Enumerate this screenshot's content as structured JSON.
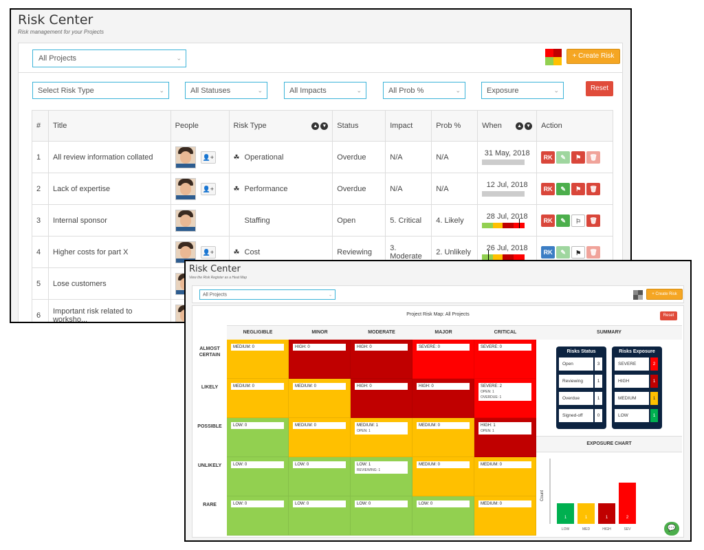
{
  "win1": {
    "title": "Risk Center",
    "subtitle": "Risk management for your Projects",
    "project_select": "All Projects",
    "create_label": "+ Create Risk",
    "filters": {
      "risk_type": "Select Risk Type",
      "status": "All Statuses",
      "impact": "All Impacts",
      "prob": "All Prob %",
      "exposure": "Exposure"
    },
    "reset_label": "Reset",
    "columns": [
      "#",
      "Title",
      "People",
      "Risk Type",
      "Status",
      "Impact",
      "Prob %",
      "When",
      "Action"
    ],
    "rows": [
      {
        "num": "1",
        "title": "All review information collated",
        "type": "Operational",
        "status": "Overdue",
        "impact": "N/A",
        "prob": "N/A",
        "when": "31 May, 2018"
      },
      {
        "num": "2",
        "title": "Lack of expertise",
        "type": "Performance",
        "status": "Overdue",
        "impact": "N/A",
        "prob": "N/A",
        "when": "12 Jul, 2018"
      },
      {
        "num": "3",
        "title": "Internal sponsor",
        "type": "Staffing",
        "status": "Open",
        "impact": "5. Critical",
        "prob": "4. Likely",
        "when": "28 Jul, 2018"
      },
      {
        "num": "4",
        "title": "Higher costs for part X",
        "type": "Cost",
        "status": "Reviewing",
        "impact": "3. Moderate",
        "prob": "2. Unlikely",
        "when": "26 Jul, 2018"
      },
      {
        "num": "5",
        "title": "Lose customers",
        "type": "",
        "status": "",
        "impact": "",
        "prob": "",
        "when": ""
      },
      {
        "num": "6",
        "title": "Important risk related to worksho...",
        "type": "",
        "status": "",
        "impact": "",
        "prob": "",
        "when": ""
      }
    ],
    "rk_label": "RK"
  },
  "win2": {
    "title": "Risk Center",
    "subtitle": "View the Risk Register as a Heat Map",
    "project_select": "All Projects",
    "create_label": "+ Create Risk",
    "map_title": "Project Risk Map: All Projects",
    "reset_label": "Reset",
    "impact_cols": [
      "NEGLIGIBLE",
      "MINOR",
      "MODERATE",
      "MAJOR",
      "CRITICAL"
    ],
    "summary_label": "SUMMARY",
    "prob_rows": [
      "ALMOST CERTAIN",
      "LIKELY",
      "POSSIBLE",
      "UNLIKELY",
      "RARE"
    ],
    "cells": [
      [
        {
          "t": "MEDIUM: 0",
          "c": "#ffc000"
        },
        {
          "t": "HIGH: 0",
          "c": "#c00000"
        },
        {
          "t": "HIGH: 0",
          "c": "#c00000"
        },
        {
          "t": "SEVERE: 0",
          "c": "#ff0000"
        },
        {
          "t": "SEVERE: 0",
          "c": "#ff0000"
        }
      ],
      [
        {
          "t": "MEDIUM: 0",
          "c": "#ffc000"
        },
        {
          "t": "MEDIUM: 0",
          "c": "#ffc000"
        },
        {
          "t": "HIGH: 0",
          "c": "#c00000"
        },
        {
          "t": "HIGH: 0",
          "c": "#c00000"
        },
        {
          "t": "SEVERE: 2",
          "s1": "OPEN: 1",
          "s2": "OVERDUE: 1",
          "c": "#ff0000"
        }
      ],
      [
        {
          "t": "LOW: 0",
          "c": "#92d050"
        },
        {
          "t": "MEDIUM: 0",
          "c": "#ffc000"
        },
        {
          "t": "MEDIUM: 1",
          "s1": "OPEN: 1",
          "c": "#ffc000"
        },
        {
          "t": "MEDIUM: 0",
          "c": "#ffc000"
        },
        {
          "t": "HIGH: 1",
          "s1": "OPEN: 1",
          "c": "#c00000"
        }
      ],
      [
        {
          "t": "LOW: 0",
          "c": "#92d050"
        },
        {
          "t": "LOW: 0",
          "c": "#92d050"
        },
        {
          "t": "LOW: 1",
          "s1": "REVIEWING: 1",
          "c": "#92d050"
        },
        {
          "t": "MEDIUM: 0",
          "c": "#ffc000"
        },
        {
          "t": "MEDIUM: 0",
          "c": "#ffc000"
        }
      ],
      [
        {
          "t": "LOW: 0",
          "c": "#92d050"
        },
        {
          "t": "LOW: 0",
          "c": "#92d050"
        },
        {
          "t": "LOW: 0",
          "c": "#92d050"
        },
        {
          "t": "LOW: 0",
          "c": "#92d050"
        },
        {
          "t": "MEDIUM: 0",
          "c": "#ffc000"
        }
      ]
    ],
    "status_panel": {
      "title": "Risks Status",
      "items": [
        [
          "Open",
          "3"
        ],
        [
          "Reviewing",
          "1"
        ],
        [
          "Overdue",
          "1"
        ],
        [
          "Signed-off",
          "0"
        ]
      ]
    },
    "exposure_panel": {
      "title": "Risks Exposure",
      "items": [
        [
          "SEVERE",
          "2",
          "#ff0000"
        ],
        [
          "HIGH",
          "1",
          "#c00000"
        ],
        [
          "MEDIUM",
          "1",
          "#ffc000"
        ],
        [
          "LOW",
          "1",
          "#00b050"
        ]
      ]
    },
    "exposure_chart_label": "EXPOSURE CHART",
    "chart_data": {
      "type": "bar",
      "categories": [
        "LOW",
        "MED",
        "HIGH",
        "SEV"
      ],
      "values": [
        1,
        1,
        1,
        2
      ],
      "colors": [
        "#00b050",
        "#ffc000",
        "#c00000",
        "#ff0000"
      ],
      "ylabel": "Count",
      "ylim": [
        0,
        2
      ]
    }
  }
}
